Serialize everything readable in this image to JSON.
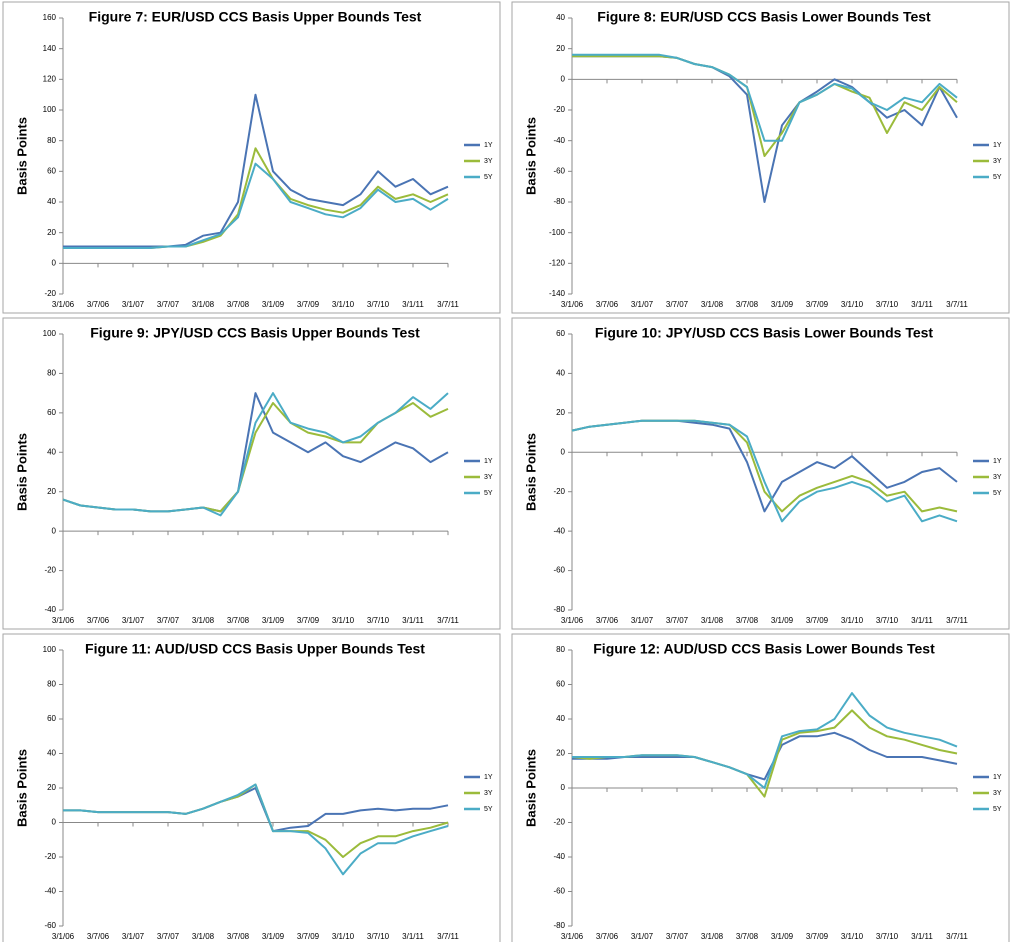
{
  "chart_data": [
    {
      "type": "line",
      "title": "Figure 7:   EUR/USD CCS Basis Upper Bounds Test",
      "y_label": "Basis Points",
      "x": [
        "3/1/06",
        "3/4/06",
        "3/7/06",
        "3/10/06",
        "3/1/07",
        "3/4/07",
        "3/7/07",
        "3/10/07",
        "3/1/08",
        "3/4/08",
        "3/7/08",
        "3/10/08",
        "3/1/09",
        "3/4/09",
        "3/7/09",
        "3/10/09",
        "3/1/10",
        "3/4/10",
        "3/7/10",
        "3/10/10",
        "3/1/11",
        "3/4/11",
        "3/7/11"
      ],
      "xticks": [
        "3/1/06",
        "3/7/06",
        "3/1/07",
        "3/7/07",
        "3/1/08",
        "3/7/08",
        "3/1/09",
        "3/7/09",
        "3/1/10",
        "3/7/10",
        "3/1/11",
        "3/7/11"
      ],
      "ylim": [
        -20,
        160
      ],
      "yticks": [
        -20,
        0,
        20,
        40,
        60,
        80,
        100,
        120,
        140,
        160
      ],
      "series": [
        {
          "name": "1Y",
          "color": "#4a74b4",
          "values": [
            11,
            11,
            11,
            11,
            11,
            11,
            11,
            12,
            18,
            20,
            40,
            110,
            60,
            48,
            42,
            40,
            38,
            45,
            60,
            50,
            55,
            45,
            50
          ]
        },
        {
          "name": "3Y",
          "color": "#9bbb3b",
          "values": [
            10,
            10,
            10,
            10,
            10,
            10,
            11,
            11,
            14,
            18,
            32,
            75,
            55,
            42,
            38,
            35,
            33,
            38,
            50,
            42,
            45,
            40,
            45
          ]
        },
        {
          "name": "5Y",
          "color": "#4bacc6",
          "values": [
            10,
            10,
            10,
            10,
            10,
            10,
            11,
            11,
            15,
            19,
            30,
            65,
            55,
            40,
            36,
            32,
            30,
            36,
            48,
            40,
            42,
            35,
            42
          ]
        }
      ]
    },
    {
      "type": "line",
      "title": "Figure 8:  EUR/USD CCS Basis Lower Bounds Test",
      "y_label": "Basis Points",
      "x": [
        "3/1/06",
        "3/4/06",
        "3/7/06",
        "3/10/06",
        "3/1/07",
        "3/4/07",
        "3/7/07",
        "3/10/07",
        "3/1/08",
        "3/4/08",
        "3/7/08",
        "3/10/08",
        "3/1/09",
        "3/4/09",
        "3/7/09",
        "3/10/09",
        "3/1/10",
        "3/4/10",
        "3/7/10",
        "3/10/10",
        "3/1/11",
        "3/4/11",
        "3/7/11"
      ],
      "xticks": [
        "3/1/06",
        "3/7/06",
        "3/1/07",
        "3/7/07",
        "3/1/08",
        "3/7/08",
        "3/1/09",
        "3/7/09",
        "3/1/10",
        "3/7/10",
        "3/1/11",
        "3/7/11"
      ],
      "ylim": [
        -140,
        40
      ],
      "yticks": [
        -140,
        -120,
        -100,
        -80,
        -60,
        -40,
        -20,
        0,
        20,
        40
      ],
      "series": [
        {
          "name": "1Y",
          "color": "#4a74b4",
          "values": [
            15,
            15,
            15,
            15,
            15,
            15,
            14,
            10,
            8,
            2,
            -10,
            -80,
            -30,
            -15,
            -8,
            0,
            -5,
            -15,
            -25,
            -20,
            -30,
            -5,
            -25
          ]
        },
        {
          "name": "3Y",
          "color": "#9bbb3b",
          "values": [
            15,
            15,
            15,
            15,
            15,
            15,
            14,
            10,
            8,
            3,
            -5,
            -50,
            -35,
            -15,
            -10,
            -3,
            -8,
            -12,
            -35,
            -15,
            -20,
            -5,
            -15
          ]
        },
        {
          "name": "5Y",
          "color": "#4bacc6",
          "values": [
            16,
            16,
            16,
            16,
            16,
            16,
            14,
            10,
            8,
            3,
            -5,
            -40,
            -40,
            -15,
            -10,
            -3,
            -6,
            -15,
            -20,
            -12,
            -15,
            -3,
            -12
          ]
        }
      ]
    },
    {
      "type": "line",
      "title": "Figure 9:   JPY/USD CCS Basis Upper Bounds Test",
      "y_label": "Basis Points",
      "x": [
        "3/1/06",
        "3/4/06",
        "3/7/06",
        "3/10/06",
        "3/1/07",
        "3/4/07",
        "3/7/07",
        "3/10/07",
        "3/1/08",
        "3/4/08",
        "3/7/08",
        "3/10/08",
        "3/1/09",
        "3/4/09",
        "3/7/09",
        "3/10/09",
        "3/1/10",
        "3/4/10",
        "3/7/10",
        "3/10/10",
        "3/1/11",
        "3/4/11",
        "3/7/11"
      ],
      "xticks": [
        "3/1/06",
        "3/7/06",
        "3/1/07",
        "3/7/07",
        "3/1/08",
        "3/7/08",
        "3/1/09",
        "3/7/09",
        "3/1/10",
        "3/7/10",
        "3/1/11",
        "3/7/11"
      ],
      "ylim": [
        -40,
        100
      ],
      "yticks": [
        -40,
        -20,
        0,
        20,
        40,
        60,
        80,
        100
      ],
      "series": [
        {
          "name": "1Y",
          "color": "#4a74b4",
          "values": [
            16,
            13,
            12,
            11,
            11,
            10,
            10,
            11,
            12,
            10,
            20,
            70,
            50,
            45,
            40,
            45,
            38,
            35,
            40,
            45,
            42,
            35,
            40
          ]
        },
        {
          "name": "3Y",
          "color": "#9bbb3b",
          "values": [
            16,
            13,
            12,
            11,
            11,
            10,
            10,
            11,
            12,
            10,
            20,
            50,
            65,
            55,
            50,
            48,
            45,
            45,
            55,
            60,
            65,
            58,
            62
          ]
        },
        {
          "name": "5Y",
          "color": "#4bacc6",
          "values": [
            16,
            13,
            12,
            11,
            11,
            10,
            10,
            11,
            12,
            8,
            20,
            55,
            70,
            55,
            52,
            50,
            45,
            48,
            55,
            60,
            68,
            62,
            70
          ]
        }
      ]
    },
    {
      "type": "line",
      "title": "Figure 10:   JPY/USD CCS Basis Lower Bounds Test",
      "y_label": "Basis Points",
      "x": [
        "3/1/06",
        "3/4/06",
        "3/7/06",
        "3/10/06",
        "3/1/07",
        "3/4/07",
        "3/7/07",
        "3/10/07",
        "3/1/08",
        "3/4/08",
        "3/7/08",
        "3/10/08",
        "3/1/09",
        "3/4/09",
        "3/7/09",
        "3/10/09",
        "3/1/10",
        "3/4/10",
        "3/7/10",
        "3/10/10",
        "3/1/11",
        "3/4/11",
        "3/7/11"
      ],
      "xticks": [
        "3/1/06",
        "3/7/06",
        "3/1/07",
        "3/7/07",
        "3/1/08",
        "3/7/08",
        "3/1/09",
        "3/7/09",
        "3/1/10",
        "3/7/10",
        "3/1/11",
        "3/7/11"
      ],
      "ylim": [
        -80,
        60
      ],
      "yticks": [
        -80,
        -60,
        -40,
        -20,
        0,
        20,
        40,
        60
      ],
      "series": [
        {
          "name": "1Y",
          "color": "#4a74b4",
          "values": [
            11,
            13,
            14,
            15,
            16,
            16,
            16,
            15,
            14,
            12,
            -5,
            -30,
            -15,
            -10,
            -5,
            -8,
            -2,
            -10,
            -18,
            -15,
            -10,
            -8,
            -15
          ]
        },
        {
          "name": "3Y",
          "color": "#9bbb3b",
          "values": [
            11,
            13,
            14,
            15,
            16,
            16,
            16,
            16,
            15,
            14,
            5,
            -20,
            -30,
            -22,
            -18,
            -15,
            -12,
            -15,
            -22,
            -20,
            -30,
            -28,
            -30
          ]
        },
        {
          "name": "5Y",
          "color": "#4bacc6",
          "values": [
            11,
            13,
            14,
            15,
            16,
            16,
            16,
            16,
            15,
            14,
            8,
            -15,
            -35,
            -25,
            -20,
            -18,
            -15,
            -18,
            -25,
            -22,
            -35,
            -32,
            -35
          ]
        }
      ]
    },
    {
      "type": "line",
      "title": "Figure 11:   AUD/USD CCS Basis Upper Bounds Test",
      "y_label": "Basis Points",
      "x": [
        "3/1/06",
        "3/4/06",
        "3/7/06",
        "3/10/06",
        "3/1/07",
        "3/4/07",
        "3/7/07",
        "3/10/07",
        "3/1/08",
        "3/4/08",
        "3/7/08",
        "3/10/08",
        "3/1/09",
        "3/4/09",
        "3/7/09",
        "3/10/09",
        "3/1/10",
        "3/4/10",
        "3/7/10",
        "3/10/10",
        "3/1/11",
        "3/4/11",
        "3/7/11"
      ],
      "xticks": [
        "3/1/06",
        "3/7/06",
        "3/1/07",
        "3/7/07",
        "3/1/08",
        "3/7/08",
        "3/1/09",
        "3/7/09",
        "3/1/10",
        "3/7/10",
        "3/1/11",
        "3/7/11"
      ],
      "ylim": [
        -60,
        100
      ],
      "yticks": [
        -60,
        -40,
        -20,
        0,
        20,
        40,
        60,
        80,
        100
      ],
      "series": [
        {
          "name": "1Y",
          "color": "#4a74b4",
          "values": [
            7,
            7,
            6,
            6,
            6,
            6,
            6,
            5,
            8,
            12,
            15,
            20,
            -5,
            -3,
            -2,
            5,
            5,
            7,
            8,
            7,
            8,
            8,
            10
          ]
        },
        {
          "name": "3Y",
          "color": "#9bbb3b",
          "values": [
            7,
            7,
            6,
            6,
            6,
            6,
            6,
            5,
            8,
            12,
            15,
            22,
            -5,
            -5,
            -5,
            -10,
            -20,
            -12,
            -8,
            -8,
            -5,
            -3,
            0
          ]
        },
        {
          "name": "5Y",
          "color": "#4bacc6",
          "values": [
            7,
            7,
            6,
            6,
            6,
            6,
            6,
            5,
            8,
            12,
            16,
            22,
            -5,
            -5,
            -6,
            -15,
            -30,
            -18,
            -12,
            -12,
            -8,
            -5,
            -2
          ]
        }
      ]
    },
    {
      "type": "line",
      "title": "Figure 12:   AUD/USD CCS Basis Lower Bounds Test",
      "y_label": "Basis Points",
      "x": [
        "3/1/06",
        "3/4/06",
        "3/7/06",
        "3/10/06",
        "3/1/07",
        "3/4/07",
        "3/7/07",
        "3/10/07",
        "3/1/08",
        "3/4/08",
        "3/7/08",
        "3/10/08",
        "3/1/09",
        "3/4/09",
        "3/7/09",
        "3/10/09",
        "3/1/10",
        "3/4/10",
        "3/7/10",
        "3/10/10",
        "3/1/11",
        "3/4/11",
        "3/7/11"
      ],
      "xticks": [
        "3/1/06",
        "3/7/06",
        "3/1/07",
        "3/7/07",
        "3/1/08",
        "3/7/08",
        "3/1/09",
        "3/7/09",
        "3/1/10",
        "3/7/10",
        "3/1/11",
        "3/7/11"
      ],
      "ylim": [
        -80,
        80
      ],
      "yticks": [
        -80,
        -60,
        -40,
        -20,
        0,
        20,
        40,
        60,
        80
      ],
      "series": [
        {
          "name": "1Y",
          "color": "#4a74b4",
          "values": [
            17,
            17,
            17,
            18,
            18,
            18,
            18,
            18,
            15,
            12,
            8,
            5,
            25,
            30,
            30,
            32,
            28,
            22,
            18,
            18,
            18,
            16,
            14
          ]
        },
        {
          "name": "3Y",
          "color": "#9bbb3b",
          "values": [
            18,
            17,
            18,
            18,
            19,
            19,
            19,
            18,
            15,
            12,
            8,
            -5,
            28,
            32,
            33,
            35,
            45,
            35,
            30,
            28,
            25,
            22,
            20
          ]
        },
        {
          "name": "5Y",
          "color": "#4bacc6",
          "values": [
            18,
            18,
            18,
            18,
            19,
            19,
            19,
            18,
            15,
            12,
            8,
            0,
            30,
            33,
            34,
            40,
            55,
            42,
            35,
            32,
            30,
            28,
            24
          ]
        }
      ]
    }
  ]
}
